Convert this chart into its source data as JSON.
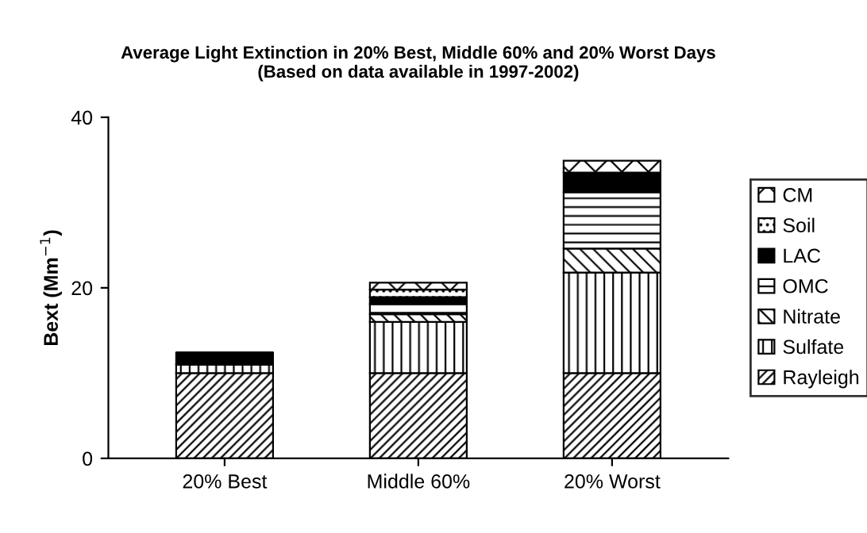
{
  "chart_data": {
    "type": "bar",
    "stacked": true,
    "title": "Average Light Extinction in 20% Best, Middle 60% and 20% Worst Days\n(Based on data available in 1997-2002)",
    "ylabel": "Bext (Mm$^{−1}$)",
    "categories": [
      "20% Best",
      "Middle 60%",
      "20% Worst"
    ],
    "series": [
      {
        "name": "Rayleigh",
        "color": "#000000",
        "values": [
          10,
          10,
          10
        ]
      },
      {
        "name": "Sulfate",
        "color": "#000000",
        "values": [
          1.0,
          6.0,
          11.8
        ]
      },
      {
        "name": "Nitrate",
        "color": "#000000",
        "values": [
          0,
          0.9,
          2.8
        ]
      },
      {
        "name": "OMC",
        "color": "#000000",
        "values": [
          0,
          1.2,
          6.6
        ]
      },
      {
        "name": "LAC",
        "color": "#000000",
        "values": [
          1.4,
          0.8,
          2.3
        ]
      },
      {
        "name": "Soil",
        "color": "#000000",
        "values": [
          0,
          0.9,
          null
        ]
      },
      {
        "name": "CM",
        "color": "#000000",
        "values": [
          0,
          0.8,
          1.4
        ]
      }
    ],
    "ylim": [
      0,
      40
    ],
    "yticks": [
      0,
      20,
      40
    ],
    "grid": false,
    "legend": "right"
  }
}
